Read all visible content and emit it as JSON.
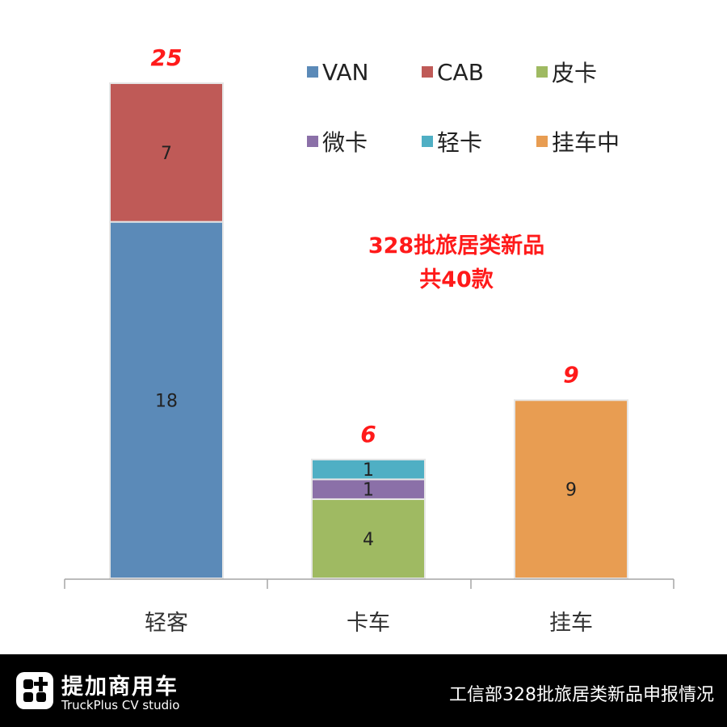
{
  "chart_data": {
    "type": "bar",
    "stacked": true,
    "categories": [
      "轻客",
      "卡车",
      "挂车"
    ],
    "series": [
      {
        "name": "VAN",
        "color": "#5b8ab8",
        "values": [
          18,
          0,
          0
        ]
      },
      {
        "name": "CAB",
        "color": "#bf5a57",
        "values": [
          7,
          0,
          0
        ]
      },
      {
        "name": "皮卡",
        "color": "#9fba62",
        "values": [
          0,
          4,
          0
        ]
      },
      {
        "name": "微卡",
        "color": "#8b70a8",
        "values": [
          0,
          1,
          0
        ]
      },
      {
        "name": "轻卡",
        "color": "#4fafc4",
        "values": [
          0,
          1,
          0
        ]
      },
      {
        "name": "挂车中",
        "color": "#e89d52",
        "values": [
          0,
          0,
          9
        ]
      }
    ],
    "totals": [
      "25",
      "6",
      "9"
    ],
    "ylim": [
      0,
      25
    ],
    "grid": false,
    "legend_position": "top-right",
    "annotation": {
      "line1": "328批旅居类新品",
      "line2": "共40款"
    }
  },
  "footer": {
    "brand": "提加商用车",
    "brand_sub": "TruckPlus CV studio",
    "caption": "工信部328批旅居类新品申报情况"
  }
}
